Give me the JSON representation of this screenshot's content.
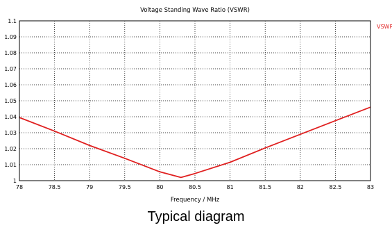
{
  "caption": "Typical diagram",
  "colors": {
    "series": "#e02020",
    "grid": "#000000",
    "background": "#ffffff"
  },
  "chart_data": {
    "type": "line",
    "title": "Voltage Standing Wave Ratio (VSWR)",
    "xlabel": "Frequency / MHz",
    "ylabel": "",
    "xlim": [
      78,
      83
    ],
    "ylim": [
      1,
      1.1
    ],
    "x_ticks": [
      78,
      78.5,
      79,
      79.5,
      80,
      80.5,
      81,
      81.5,
      82,
      82.5,
      83
    ],
    "x_tick_labels": [
      "78",
      "78.5",
      "79",
      "79.5",
      "80",
      "80.5",
      "81",
      "81.5",
      "82",
      "82.5",
      "83"
    ],
    "y_ticks": [
      1,
      1.01,
      1.02,
      1.03,
      1.04,
      1.05,
      1.06,
      1.07,
      1.08,
      1.09,
      1.1
    ],
    "y_tick_labels": [
      "1",
      "1.01",
      "1.02",
      "1.03",
      "1.04",
      "1.05",
      "1.06",
      "1.07",
      "1.08",
      "1.09",
      "1.1"
    ],
    "grid": true,
    "legend_position": "top-right",
    "series": [
      {
        "name": "VSWR:",
        "x": [
          78,
          78.5,
          79,
          79.5,
          80,
          80.3,
          80.5,
          81,
          81.5,
          82,
          82.5,
          83
        ],
        "values": [
          1.0395,
          1.031,
          1.022,
          1.014,
          1.0055,
          1.002,
          1.0045,
          1.0115,
          1.0205,
          1.029,
          1.0375,
          1.046
        ]
      }
    ]
  }
}
